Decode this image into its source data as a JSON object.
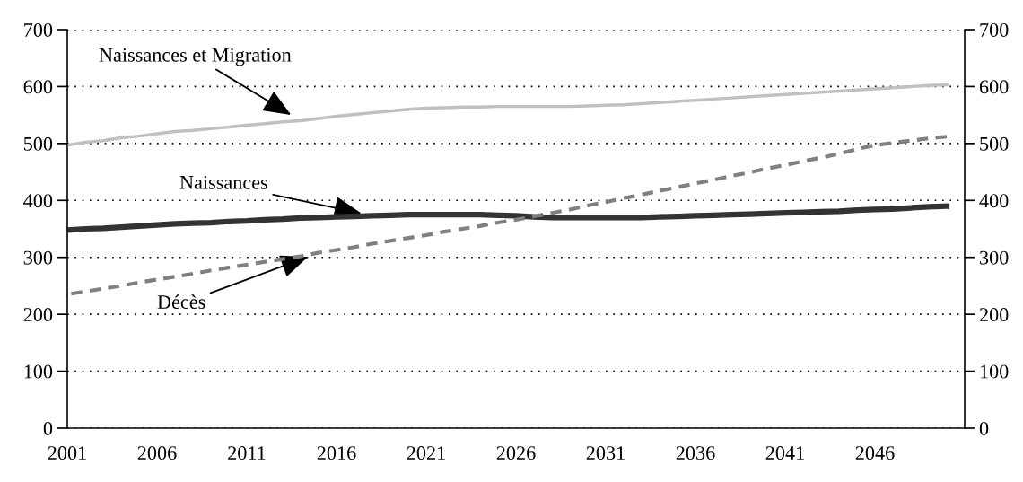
{
  "chart_data": {
    "type": "line",
    "x": [
      2001,
      2002,
      2003,
      2004,
      2005,
      2006,
      2007,
      2008,
      2009,
      2010,
      2011,
      2012,
      2013,
      2014,
      2015,
      2016,
      2017,
      2018,
      2019,
      2020,
      2021,
      2022,
      2023,
      2024,
      2025,
      2026,
      2027,
      2028,
      2029,
      2030,
      2031,
      2032,
      2033,
      2034,
      2035,
      2036,
      2037,
      2038,
      2039,
      2040,
      2041,
      2042,
      2043,
      2044,
      2045,
      2046,
      2047,
      2048,
      2049,
      2050
    ],
    "series": [
      {
        "name": "Naissances et Migration",
        "color": "#c0c0c0",
        "line_style": "solid",
        "values": [
          497,
          502,
          505,
          510,
          513,
          517,
          521,
          523,
          526,
          529,
          532,
          535,
          538,
          540,
          544,
          548,
          551,
          554,
          557,
          560,
          562,
          563,
          564,
          564,
          565,
          565,
          565,
          565,
          565,
          566,
          567,
          568,
          570,
          572,
          574,
          576,
          578,
          580,
          582,
          584,
          586,
          588,
          590,
          592,
          594,
          596,
          598,
          600,
          602,
          603
        ]
      },
      {
        "name": "Naissances",
        "color": "#333333",
        "line_style": "solid",
        "values": [
          348,
          350,
          351,
          353,
          355,
          357,
          359,
          360,
          361,
          363,
          364,
          366,
          367,
          369,
          370,
          371,
          372,
          373,
          374,
          375,
          375,
          375,
          375,
          375,
          374,
          373,
          371,
          370,
          370,
          370,
          370,
          370,
          370,
          371,
          372,
          373,
          374,
          375,
          376,
          377,
          378,
          379,
          380,
          381,
          383,
          384,
          385,
          387,
          389,
          390
        ]
      },
      {
        "name": "Décès",
        "color": "#808080",
        "line_style": "dashed",
        "values": [
          235,
          240,
          245,
          250,
          256,
          261,
          266,
          271,
          277,
          282,
          287,
          292,
          297,
          302,
          308,
          313,
          318,
          324,
          329,
          334,
          339,
          345,
          350,
          355,
          361,
          366,
          372,
          378,
          384,
          391,
          397,
          404,
          410,
          417,
          423,
          430,
          436,
          443,
          449,
          456,
          462,
          469,
          475,
          482,
          490,
          497,
          501,
          505,
          509,
          512
        ]
      }
    ],
    "xlim": [
      2001,
      2051
    ],
    "xticks": [
      2001,
      2006,
      2011,
      2016,
      2021,
      2026,
      2031,
      2036,
      2041,
      2046
    ],
    "ylim": [
      0,
      700
    ],
    "yticks": [
      0,
      100,
      200,
      300,
      400,
      500,
      600,
      700
    ],
    "y2lim": [
      0,
      700
    ],
    "y2ticks": [
      0,
      100,
      200,
      300,
      400,
      500,
      600,
      700
    ],
    "grid": "y",
    "legend": false
  }
}
